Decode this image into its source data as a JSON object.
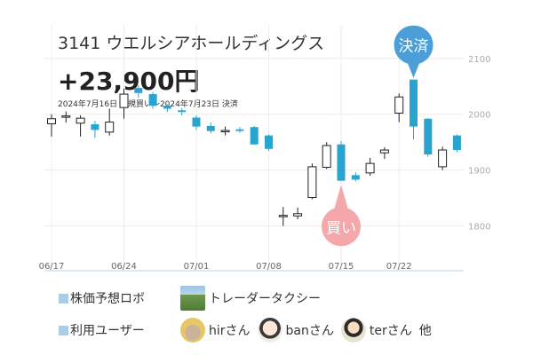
{
  "header": {
    "title": "3141 ウエルシアホールディングス",
    "profit": "+23,900円",
    "period": "2024年7月16日 新規買い～2024年7月23日 決済"
  },
  "markers": {
    "buy_label": "買い",
    "sell_label": "決済",
    "buy_color": "#f4a8ab",
    "sell_color": "#4a9fd8"
  },
  "chart_data": {
    "type": "candlestick",
    "x_labels": [
      "06/17",
      "06/24",
      "07/01",
      "07/08",
      "07/15",
      "07/22"
    ],
    "y_labels": [
      "2100",
      "2000",
      "1900",
      "1800"
    ],
    "ylim": [
      1720,
      2160
    ],
    "up_color": "#222222",
    "down_color": "#29a3cf",
    "candles": [
      {
        "o": 1983,
        "c": 1992,
        "h": 2000,
        "l": 1960
      },
      {
        "o": 1996,
        "c": 1997,
        "h": 2005,
        "l": 1985
      },
      {
        "o": 1984,
        "c": 1993,
        "h": 1998,
        "l": 1960
      },
      {
        "o": 1982,
        "c": 1972,
        "h": 1988,
        "l": 1958
      },
      {
        "o": 1968,
        "c": 1986,
        "h": 2010,
        "l": 1962
      },
      {
        "o": 2012,
        "c": 2036,
        "h": 2046,
        "l": 1992
      },
      {
        "o": 2047,
        "c": 2038,
        "h": 2052,
        "l": 2030
      },
      {
        "o": 2036,
        "c": 2015,
        "h": 2040,
        "l": 2010
      },
      {
        "o": 2015,
        "c": 2010,
        "h": 2018,
        "l": 2004
      },
      {
        "o": 2007,
        "c": 2004,
        "h": 2011,
        "l": 1998
      },
      {
        "o": 1994,
        "c": 1978,
        "h": 1998,
        "l": 1972
      },
      {
        "o": 1979,
        "c": 1970,
        "h": 1985,
        "l": 1966
      },
      {
        "o": 1971,
        "c": 1971,
        "h": 1978,
        "l": 1962
      },
      {
        "o": 1973,
        "c": 1970,
        "h": 1977,
        "l": 1967
      },
      {
        "o": 1977,
        "c": 1946,
        "h": 1979,
        "l": 1946
      },
      {
        "o": 1962,
        "c": 1938,
        "h": 1964,
        "l": 1935
      },
      {
        "o": 1819,
        "c": 1819,
        "h": 1834,
        "l": 1800
      },
      {
        "o": 1818,
        "c": 1822,
        "h": 1833,
        "l": 1812
      },
      {
        "o": 1851,
        "c": 1906,
        "h": 1912,
        "l": 1848
      },
      {
        "o": 1905,
        "c": 1944,
        "h": 1950,
        "l": 1902
      },
      {
        "o": 1946,
        "c": 1881,
        "h": 1952,
        "l": 1880
      },
      {
        "o": 1891,
        "c": 1883,
        "h": 1896,
        "l": 1880
      },
      {
        "o": 1895,
        "c": 1912,
        "h": 1922,
        "l": 1890
      },
      {
        "o": 1931,
        "c": 1936,
        "h": 1941,
        "l": 1920
      },
      {
        "o": 2002,
        "c": 2031,
        "h": 2037,
        "l": 1986
      },
      {
        "o": 2062,
        "c": 1978,
        "h": 2062,
        "l": 1955
      },
      {
        "o": 1992,
        "c": 1928,
        "h": 1993,
        "l": 1924
      },
      {
        "o": 1906,
        "c": 1936,
        "h": 1942,
        "l": 1900
      },
      {
        "o": 1962,
        "c": 1936,
        "h": 1964,
        "l": 1932
      }
    ]
  },
  "legend": {
    "prediction_robot_label": "株価予想ロボ",
    "robot_name": "トレーダータクシー",
    "users_label": "利用ユーザー",
    "users": [
      "hirさん",
      "banさん",
      "terさん"
    ],
    "others": "他"
  }
}
